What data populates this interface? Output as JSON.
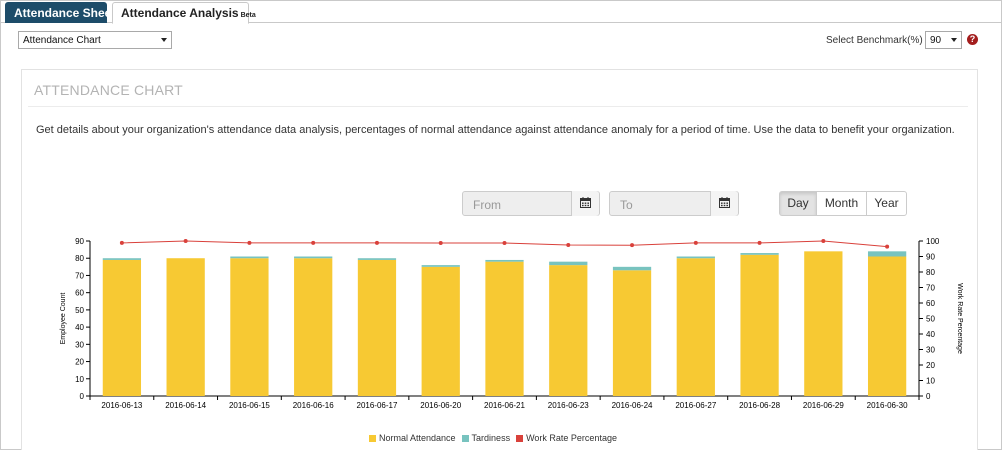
{
  "tabs": [
    {
      "label": "Attendance Sheet"
    },
    {
      "label": "Attendance Analysis",
      "badge": "Beta"
    }
  ],
  "controls": {
    "view_select": "Attendance Chart",
    "benchmark_label": "Select Benchmark(%)",
    "benchmark_value": "90",
    "help_glyph": "?"
  },
  "panel": {
    "title": "ATTENDANCE CHART",
    "description": "Get details about your organization's attendance data analysis, percentages of normal attendance against attendance anomaly for a period of time. Use the data to benefit your organization."
  },
  "date_range": {
    "from_placeholder": "From",
    "to_placeholder": "To"
  },
  "granularity": {
    "options": [
      "Day",
      "Month",
      "Year"
    ],
    "selected": "Day"
  },
  "chart_data": {
    "type": "bar",
    "categories": [
      "2016-06-13",
      "2016-06-14",
      "2016-06-15",
      "2016-06-16",
      "2016-06-17",
      "2016-06-20",
      "2016-06-21",
      "2016-06-23",
      "2016-06-24",
      "2016-06-27",
      "2016-06-28",
      "2016-06-29",
      "2016-06-30"
    ],
    "series": [
      {
        "name": "Normal Attendance",
        "values": [
          79,
          80,
          80,
          80,
          79,
          75,
          78,
          76,
          73,
          80,
          82,
          84,
          81
        ],
        "color": "#f7c933"
      },
      {
        "name": "Tardiness",
        "values": [
          1,
          0,
          1,
          1,
          1,
          1,
          1,
          2,
          2,
          1,
          1,
          0,
          3
        ],
        "color": "#78c3bf"
      },
      {
        "name": "Work Rate Percentage",
        "values": [
          98.8,
          100,
          98.8,
          98.8,
          98.8,
          98.7,
          98.7,
          97.4,
          97.3,
          98.8,
          98.8,
          100,
          96.4
        ],
        "color": "#d9413b",
        "axis": "right"
      }
    ],
    "ylabel": "Employee Count",
    "y2label": "Work Rate Percentage",
    "ylim": [
      0,
      90
    ],
    "y2lim": [
      0,
      100
    ],
    "yticks": [
      0,
      10,
      20,
      30,
      40,
      50,
      60,
      70,
      80,
      90
    ],
    "y2ticks": [
      0,
      10,
      20,
      30,
      40,
      50,
      60,
      70,
      80,
      90,
      100
    ],
    "legend_position": "bottom"
  }
}
